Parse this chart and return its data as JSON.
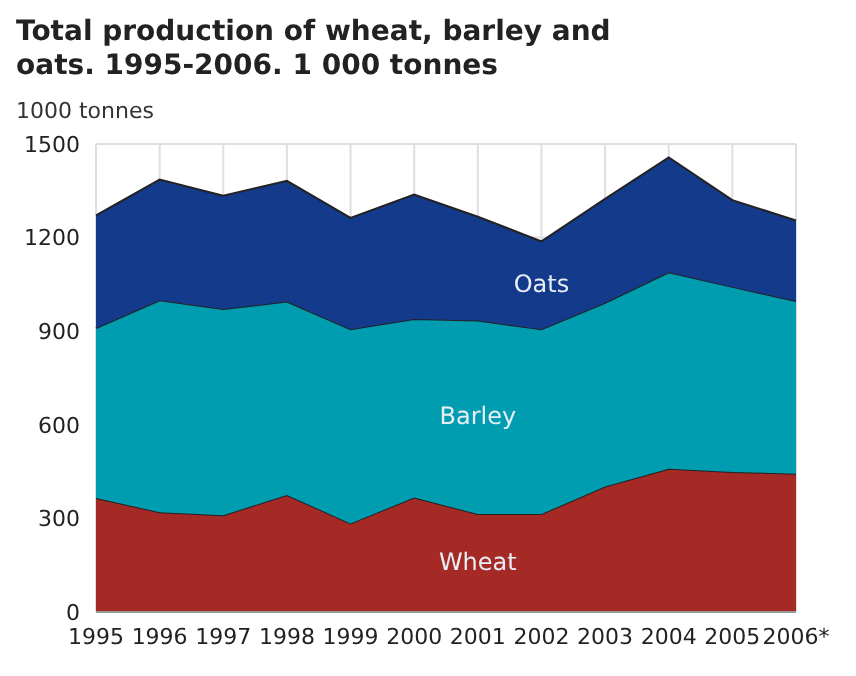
{
  "chart_data": {
    "type": "area",
    "title": "Total production of wheat, barley and oats. 1995-2006. 1 000 tonnes",
    "ylabel": "1000 tonnes",
    "categories": [
      "1995",
      "1996",
      "1997",
      "1998",
      "1999",
      "2000",
      "2001",
      "2002",
      "2003",
      "2004",
      "2005",
      "2006*"
    ],
    "stacked": true,
    "ylim": [
      0,
      1500
    ],
    "yticks": [
      0,
      300,
      600,
      900,
      1200,
      1500
    ],
    "grid": true,
    "legend": false,
    "series": [
      {
        "name": "Wheat",
        "color": "#a52a25",
        "values": [
          365,
          320,
          310,
          375,
          284,
          367,
          314,
          314,
          402,
          459,
          449,
          443
        ]
      },
      {
        "name": "Barley",
        "color": "#009cb0",
        "values": [
          545,
          679,
          661,
          620,
          622,
          572,
          620,
          592,
          589,
          630,
          593,
          554
        ]
      },
      {
        "name": "Oats",
        "color": "#143a8c",
        "values": [
          361,
          387,
          363,
          387,
          357,
          399,
          333,
          282,
          333,
          368,
          278,
          258
        ]
      }
    ]
  }
}
